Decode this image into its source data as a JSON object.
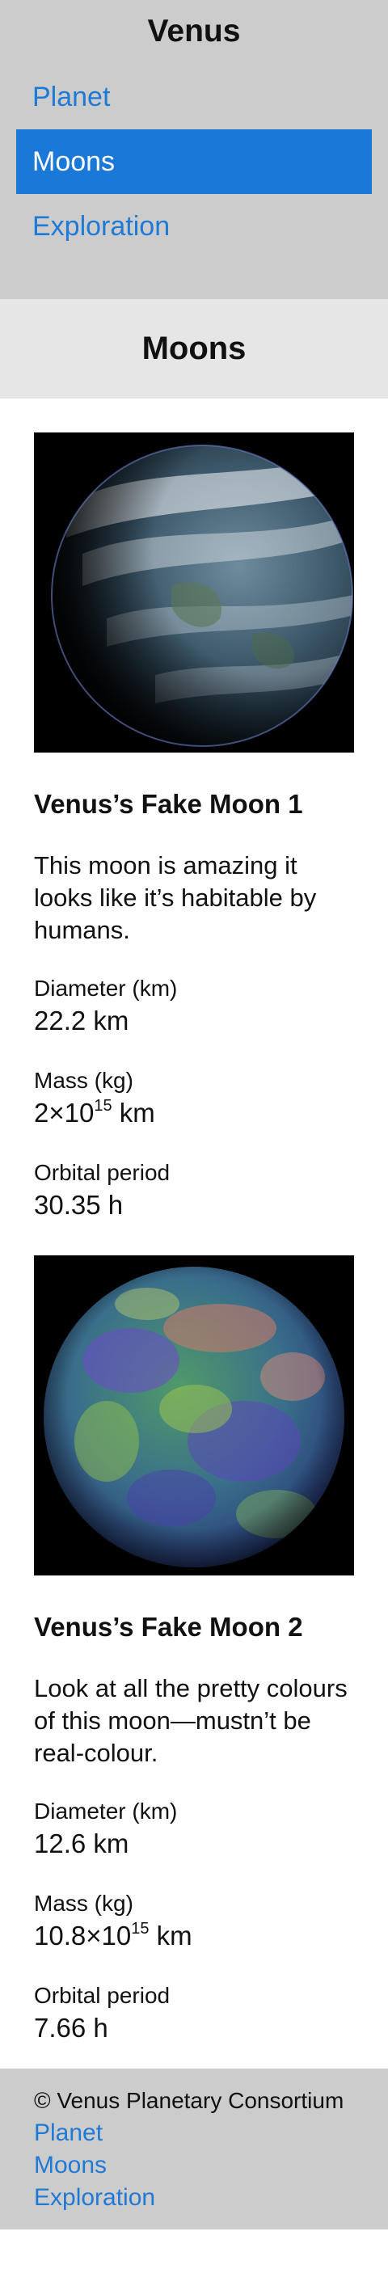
{
  "site": {
    "title": "Venus"
  },
  "nav": {
    "items": [
      {
        "label": "Planet",
        "active": false
      },
      {
        "label": "Moons",
        "active": true
      },
      {
        "label": "Exploration",
        "active": false
      }
    ]
  },
  "page": {
    "section_title": "Moons"
  },
  "moons": [
    {
      "name": "Venus’s Fake Moon 1",
      "description": "This moon is amazing it looks like it’s habitable by humans.",
      "diameter_label": "Diameter (km)",
      "diameter_value": "22.2 km",
      "mass_label": "Mass (kg)",
      "mass_mantissa": "2×10",
      "mass_exponent": "15",
      "mass_unit": " km",
      "orbital_label": "Orbital period",
      "orbital_value": "30.35 h"
    },
    {
      "name": "Venus’s Fake Moon 2",
      "description": "Look at all the pretty colours of this moon—mustn’t be real-colour.",
      "diameter_label": "Diameter (km)",
      "diameter_value": "12.6 km",
      "mass_label": "Mass (kg)",
      "mass_mantissa": "10.8×10",
      "mass_exponent": "15",
      "mass_unit": " km",
      "orbital_label": "Orbital period",
      "orbital_value": "7.66 h"
    }
  ],
  "footer": {
    "copyright": "© Venus Planetary Consortium",
    "links": [
      "Planet",
      "Moons",
      "Exploration"
    ]
  },
  "colors": {
    "link": "#1f7ad6",
    "active_nav": "#1a78d8",
    "header_bg": "#cccccc",
    "band_bg": "#e6e6e6"
  }
}
